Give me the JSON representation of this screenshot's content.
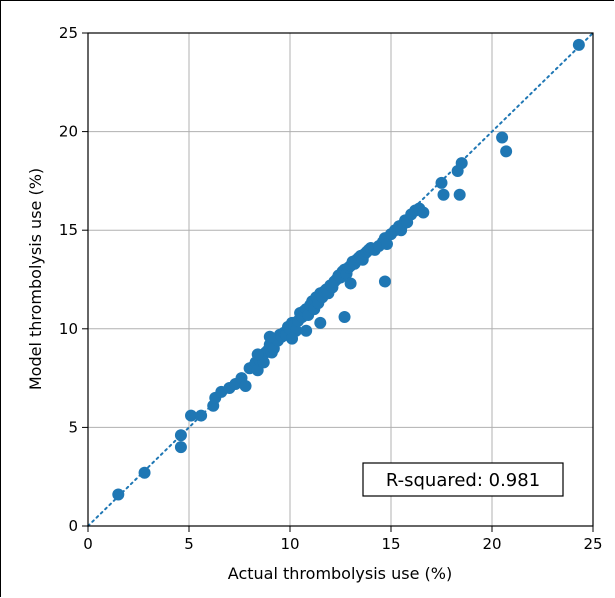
{
  "chart_data": {
    "type": "scatter",
    "xlabel": "Actual thrombolysis use (%)",
    "ylabel": "Model thrombolysis use (%)",
    "xlim": [
      0,
      25
    ],
    "ylim": [
      0,
      25
    ],
    "xticks": [
      "0",
      "5",
      "10",
      "15",
      "20",
      "25"
    ],
    "yticks": [
      "0",
      "5",
      "10",
      "15",
      "20",
      "25"
    ],
    "grid": true,
    "reference_line": {
      "type": "identity",
      "style": "dotted",
      "color": "#1f77b4"
    },
    "annotation": "R-squared: 0.981",
    "point_color": "#1f77b4",
    "x": [
      1.5,
      2.8,
      4.6,
      4.6,
      5.1,
      5.6,
      6.2,
      6.3,
      6.6,
      7.0,
      7.3,
      7.6,
      7.8,
      8.0,
      8.2,
      8.3,
      8.4,
      8.5,
      8.6,
      8.7,
      8.8,
      8.9,
      9.0,
      9.1,
      9.2,
      9.3,
      9.4,
      9.5,
      9.6,
      9.7,
      9.8,
      9.9,
      10.0,
      10.1,
      10.2,
      10.3,
      10.4,
      10.5,
      10.6,
      10.7,
      10.8,
      10.9,
      11.0,
      11.1,
      11.2,
      11.3,
      11.4,
      11.5,
      11.6,
      11.7,
      11.8,
      11.9,
      12.0,
      12.1,
      12.2,
      12.3,
      12.4,
      12.5,
      12.6,
      12.7,
      12.8,
      12.9,
      13.0,
      13.1,
      13.2,
      13.3,
      13.4,
      13.5,
      13.6,
      13.7,
      13.8,
      13.9,
      14.0,
      14.2,
      14.4,
      14.6,
      14.7,
      14.8,
      15.0,
      15.2,
      15.4,
      15.5,
      15.6,
      15.7,
      15.8,
      16.0,
      16.2,
      16.4,
      16.6,
      17.5,
      17.6,
      18.3,
      18.4,
      18.5,
      20.5,
      20.7,
      24.3,
      10.1,
      11.5,
      12.7,
      14.7,
      8.4,
      9.0,
      10.8,
      13.0
    ],
    "y": [
      1.6,
      2.7,
      4.6,
      4.0,
      5.6,
      5.6,
      6.1,
      6.5,
      6.8,
      7.0,
      7.2,
      7.5,
      7.1,
      8.0,
      8.1,
      8.3,
      7.9,
      8.4,
      8.6,
      8.3,
      8.8,
      8.9,
      9.2,
      8.8,
      9.0,
      9.5,
      9.4,
      9.7,
      9.6,
      9.8,
      9.7,
      10.1,
      10.0,
      10.3,
      10.2,
      9.9,
      10.4,
      10.8,
      10.6,
      10.9,
      11.0,
      10.7,
      11.2,
      11.4,
      11.0,
      11.6,
      11.3,
      11.8,
      11.6,
      11.9,
      12.0,
      11.8,
      12.2,
      12.1,
      12.4,
      12.5,
      12.7,
      12.6,
      12.9,
      13.0,
      12.8,
      13.1,
      13.2,
      13.4,
      13.3,
      13.5,
      13.6,
      13.7,
      13.5,
      13.8,
      13.9,
      14.0,
      14.1,
      14.0,
      14.2,
      14.4,
      14.6,
      14.3,
      14.8,
      15.0,
      15.2,
      15.0,
      15.3,
      15.5,
      15.4,
      15.8,
      16.0,
      16.1,
      15.9,
      17.4,
      16.8,
      18.0,
      16.8,
      18.4,
      19.7,
      19.0,
      24.4,
      9.5,
      10.3,
      10.6,
      12.4,
      8.7,
      9.6,
      9.9,
      12.3
    ]
  }
}
